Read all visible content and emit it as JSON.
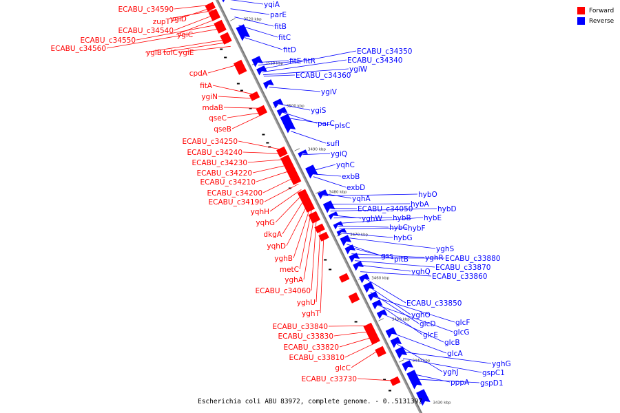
{
  "legend": {
    "forward_label": "Forward",
    "reverse_label": "Reverse",
    "forward_color": "#ff0000",
    "reverse_color": "#0000ff"
  },
  "caption": "Escherichia coli ABU 83972, complete genome. - 0..5131397",
  "axis_color": "#999999",
  "ticks": [
    "3520 kbp",
    "3510 kbp",
    "3500 kbp",
    "3490 kbp",
    "3480 kbp",
    "3470 kbp",
    "3460 kbp",
    "3450 kbp",
    "3440 kbp",
    "3430 kbp"
  ],
  "forward_genes": [
    "ECABU_c34590",
    "zupT",
    "ygiD",
    "ECABU_c34540",
    "ygiC",
    "ECABU_c34550",
    "ECABU_c34560",
    "ygiB",
    "tolC",
    "ygiE",
    "cpdA",
    "fitA",
    "ygiN",
    "mdaB",
    "qseC",
    "qseB",
    "ECABU_c34250",
    "ECABU_c34240",
    "ECABU_c34230",
    "ECABU_c34220",
    "ECABU_c34210",
    "ECABU_c34200",
    "ECABU_c34190",
    "yqhH",
    "yqhG",
    "dkgA",
    "yqhD",
    "yghB",
    "metC",
    "yghA",
    "ECABU_c34060",
    "yghU",
    "yghT",
    "ECABU_c33840",
    "ECABU_c33830",
    "ECABU_c33820",
    "ECABU_c33810",
    "glcC",
    "ECABU_c33730"
  ],
  "reverse_genes": [
    "yqiA",
    "parE",
    "fitB",
    "fitC",
    "fitD",
    "fitE",
    "fitR",
    "ECABU_c34350",
    "ECABU_c34340",
    "ygiW",
    "ECABU_c34360",
    "ygiV",
    "ygiS",
    "parC",
    "plsC",
    "sufI",
    "ygiQ",
    "yqhC",
    "exbB",
    "exbD",
    "yqhA",
    "hybO",
    "hybA",
    "ECABU_c34050",
    "hybD",
    "yghW",
    "hybB",
    "hybE",
    "hybC",
    "hybF",
    "hybG",
    "yghS",
    "gss",
    "pitB",
    "yghR",
    "ECABU_c33880",
    "ECABU_c33870",
    "yghQ",
    "ECABU_c33860",
    "ECABU_c33850",
    "yghO",
    "glcD",
    "glcF",
    "glcE",
    "glcG",
    "glcB",
    "glcA",
    "yghJ",
    "yghG",
    "gspC1",
    "pppA",
    "gspD1"
  ]
}
